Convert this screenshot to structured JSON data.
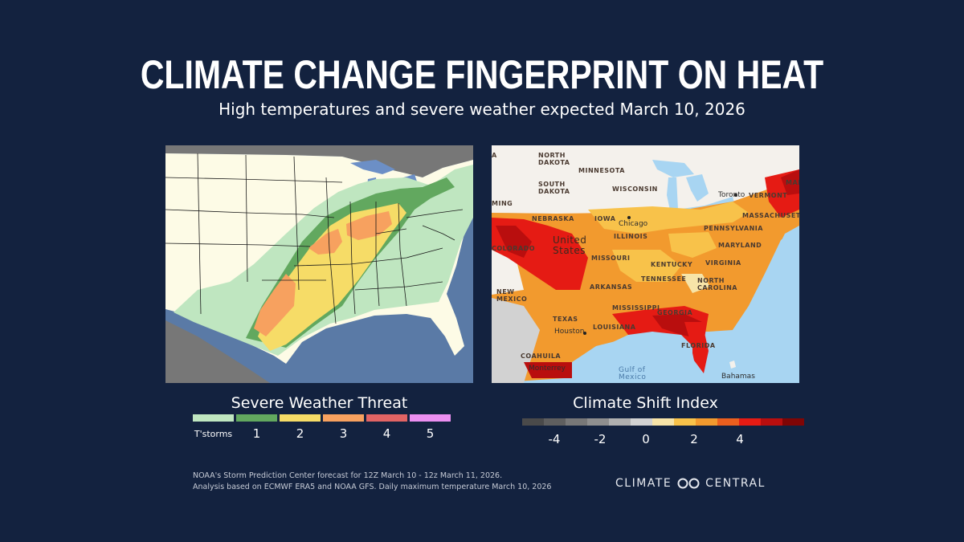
{
  "header": {
    "title": "CLIMATE CHANGE FINGERPRINT ON HEAT",
    "subtitle": "High temperatures and severe weather expected March 10, 2026"
  },
  "severe_map": {
    "legend_title": "Severe Weather Threat",
    "levels": [
      {
        "label": "T'storms",
        "color": "#bfe6c0"
      },
      {
        "label": "1",
        "color": "#62a85f"
      },
      {
        "label": "2",
        "color": "#f6dc67"
      },
      {
        "label": "3",
        "color": "#f7a15f"
      },
      {
        "label": "4",
        "color": "#e26464"
      },
      {
        "label": "5",
        "color": "#eb8ff0"
      }
    ]
  },
  "csi_map": {
    "legend_title": "Climate Shift Index",
    "scale_colors": [
      "#4a4a4a",
      "#5f5f5f",
      "#787878",
      "#8f8f8f",
      "#b0b0b0",
      "#d2d2d2",
      "#f7e4a8",
      "#f8c24a",
      "#f29a2e",
      "#eb5f1e",
      "#e51b14",
      "#b90e0e",
      "#7f0505"
    ],
    "tick_labels": [
      "-4",
      "-2",
      "0",
      "2",
      "4"
    ],
    "labels": {
      "north_dakota": "NORTH\nDAKOTA",
      "minnesota": "MINNESOTA",
      "south_dakota": "SOUTH\nDAKOTA",
      "wisconsin": "WISCONSIN",
      "wyoming": "MING",
      "nebraska": "NEBRASKA",
      "iowa": "IOWA",
      "chicago": "Chicago",
      "illinois": "ILLINOIS",
      "united_states": "United\nStates",
      "colorado": "COLORADO",
      "missouri": "MISSOURI",
      "kentucky": "KENTUCKY",
      "tennessee": "TENNESSEE",
      "arkansas": "ARKANSAS",
      "new_mexico": "NEW\nMEXICO",
      "texas": "TEXAS",
      "mississippi": "MISSISSIPPI",
      "georgia": "GEORGIA",
      "houston": "Houston",
      "louisiana": "LOUISIANA",
      "florida": "FLORIDA",
      "coahuila": "COAHUILA",
      "monterrey": "Monterrey",
      "gulf": "Gulf of\nMexico",
      "bahamas": "Bahamas",
      "toronto": "Toronto",
      "vermont": "VERMONT",
      "maine": "MAI",
      "massachusetts": "MASSACHUSETT",
      "pennsylvania": "PENNSYLVANIA",
      "maryland": "MARYLAND",
      "virginia": "VIRGINIA",
      "north_carolina": "NORTH\nCAROLINA",
      "montana": "A"
    }
  },
  "footnotes": [
    "NOAA's Storm Prediction Center forecast for 12Z March 10 - 12z March 11, 2026.",
    "Analysis based on ECMWF ERA5 and NOAA GFS. Daily maximum temperature March 10, 2026"
  ],
  "logo": {
    "text_left": "CLIMATE",
    "text_right": "CENTRAL"
  }
}
